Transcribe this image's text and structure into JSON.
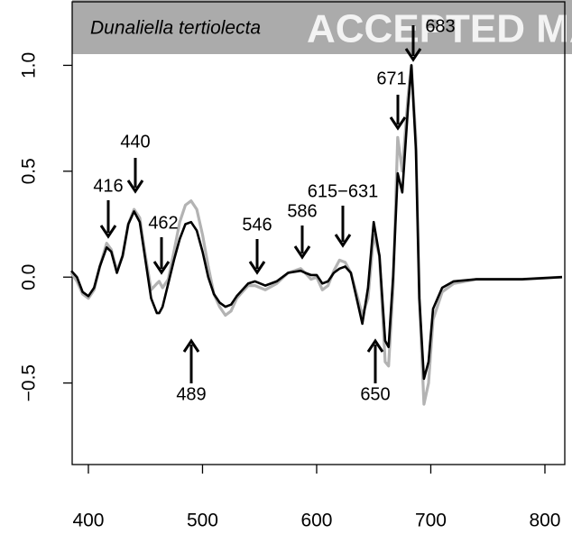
{
  "chart_data": {
    "type": "line",
    "title": "Dunaliella tertiolecta",
    "watermark": "ACCEPTED MA",
    "x": [
      385,
      390,
      395,
      400,
      405,
      410,
      416,
      420,
      425,
      430,
      435,
      440,
      445,
      450,
      455,
      460,
      462,
      465,
      470,
      475,
      480,
      485,
      490,
      495,
      500,
      505,
      510,
      515,
      520,
      525,
      530,
      540,
      546,
      555,
      565,
      575,
      586,
      590,
      595,
      600,
      605,
      610,
      615,
      620,
      625,
      630,
      635,
      640,
      645,
      650,
      655,
      660,
      663,
      667,
      671,
      675,
      680,
      683,
      687,
      690,
      694,
      698,
      702,
      710,
      720,
      740,
      780,
      815
    ],
    "series": [
      {
        "name": "gray",
        "color": "#b3b3b3",
        "values": [
          0.02,
          -0.02,
          -0.08,
          -0.1,
          -0.06,
          0.05,
          0.16,
          0.13,
          0.03,
          0.1,
          0.25,
          0.32,
          0.28,
          0.1,
          -0.06,
          -0.03,
          -0.02,
          -0.05,
          -0.01,
          0.12,
          0.26,
          0.34,
          0.36,
          0.32,
          0.2,
          0.05,
          -0.08,
          -0.14,
          -0.18,
          -0.16,
          -0.1,
          -0.04,
          -0.04,
          -0.06,
          -0.03,
          0.02,
          0.04,
          0.02,
          -0.01,
          0.0,
          -0.06,
          -0.04,
          0.03,
          0.08,
          0.07,
          0.02,
          -0.08,
          -0.18,
          -0.1,
          0.2,
          0.1,
          -0.4,
          -0.42,
          -0.05,
          0.66,
          0.5,
          0.85,
          1.0,
          0.65,
          -0.1,
          -0.6,
          -0.5,
          -0.2,
          -0.07,
          -0.03,
          -0.01,
          -0.01,
          0.0
        ]
      },
      {
        "name": "black",
        "color": "#000000",
        "values": [
          0.03,
          0.0,
          -0.07,
          -0.09,
          -0.05,
          0.05,
          0.14,
          0.12,
          0.02,
          0.1,
          0.25,
          0.31,
          0.26,
          0.08,
          -0.1,
          -0.17,
          -0.17,
          -0.14,
          -0.03,
          0.08,
          0.18,
          0.25,
          0.26,
          0.22,
          0.12,
          0.0,
          -0.08,
          -0.12,
          -0.14,
          -0.13,
          -0.09,
          -0.03,
          -0.02,
          -0.04,
          -0.02,
          0.02,
          0.03,
          0.02,
          0.01,
          0.01,
          -0.03,
          -0.02,
          0.02,
          0.04,
          0.05,
          0.02,
          -0.1,
          -0.22,
          -0.05,
          0.26,
          0.1,
          -0.3,
          -0.33,
          0.0,
          0.49,
          0.4,
          0.8,
          1.0,
          0.6,
          -0.1,
          -0.48,
          -0.4,
          -0.15,
          -0.05,
          -0.02,
          -0.01,
          -0.01,
          0.0
        ]
      }
    ],
    "xlim": [
      385.8,
      817.4
    ],
    "ylim": [
      -0.885,
      1.3
    ],
    "xticks": [
      400,
      500,
      600,
      700,
      800
    ],
    "yticks": [
      {
        "value": -0.5,
        "label": "−0.5"
      },
      {
        "value": 0,
        "label": "0.0"
      },
      0.5,
      {
        "value": 1,
        "label": "1.0"
      }
    ],
    "annotations": [
      "416",
      "440",
      "462",
      "489",
      "546",
      "586",
      "615−631",
      "650",
      "671",
      "683"
    ]
  }
}
